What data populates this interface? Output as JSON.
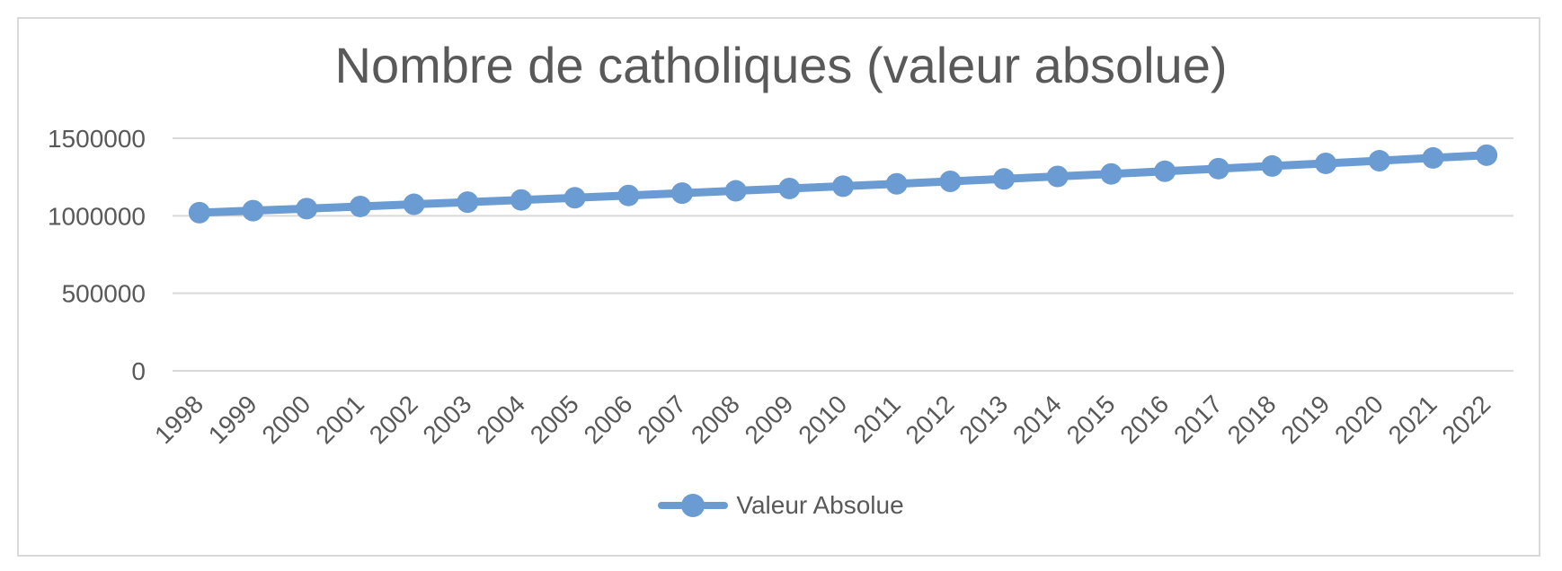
{
  "chart_data": {
    "type": "line",
    "title": "Nombre de catholiques (valeur absolue)",
    "categories": [
      "1998",
      "1999",
      "2000",
      "2001",
      "2002",
      "2003",
      "2004",
      "2005",
      "2006",
      "2007",
      "2008",
      "2009",
      "2010",
      "2011",
      "2012",
      "2013",
      "2014",
      "2015",
      "2016",
      "2017",
      "2018",
      "2019",
      "2020",
      "2021",
      "2022"
    ],
    "series": [
      {
        "name": "Valeur Absolue",
        "values": [
          1020000,
          1033000,
          1046000,
          1060000,
          1074000,
          1088000,
          1102000,
          1116000,
          1131000,
          1146000,
          1161000,
          1176000,
          1191000,
          1206000,
          1222000,
          1238000,
          1254000,
          1270000,
          1287000,
          1304000,
          1321000,
          1338000,
          1355000,
          1373000,
          1391000
        ]
      }
    ],
    "ylim": [
      0,
      1500000
    ],
    "yticks": [
      0,
      500000,
      1000000,
      1500000
    ],
    "ytick_labels": [
      "0",
      "500000",
      "1000000",
      "1500000"
    ],
    "grid": "horizontal",
    "x_label_rotation": -45,
    "legend_position": "bottom",
    "marker": "circle"
  },
  "colors": {
    "series": "#6b9bd3",
    "text": "#595959",
    "gridline": "#d9d9d9",
    "frame_border": "#d9d9d9",
    "background": "#ffffff"
  }
}
